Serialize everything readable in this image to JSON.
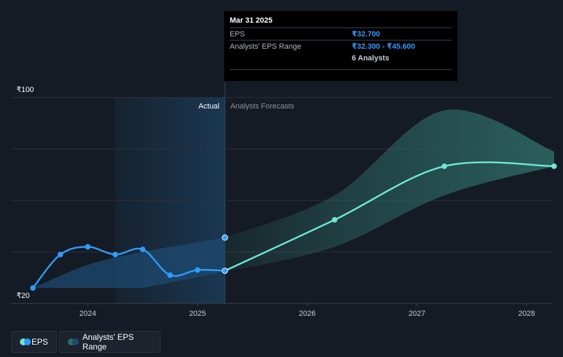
{
  "chart_data": {
    "type": "line",
    "ylim": [
      20,
      100
    ],
    "y_tick_labels": [
      "₹100",
      "₹20"
    ],
    "x_tick_labels": [
      "2024",
      "2025",
      "2026",
      "2027",
      "2028"
    ],
    "x_ticks": [
      2024,
      2025,
      2026,
      2027,
      2028
    ],
    "xlim": [
      2023.3,
      2028.25
    ],
    "region_labels": {
      "actual": "Actual",
      "forecast": "Analysts Forecasts"
    },
    "forecast_start": 2025.25,
    "series": [
      {
        "name": "EPS",
        "kind": "actual",
        "x": [
          2023.5,
          2023.75,
          2024.0,
          2024.25,
          2024.5,
          2024.75,
          2025.0,
          2025.25
        ],
        "y": [
          26,
          39,
          42,
          39,
          41,
          31,
          33,
          32.7
        ]
      },
      {
        "name": "EPS",
        "kind": "forecast",
        "x": [
          2025.25,
          2026.25,
          2027.25,
          2028.25
        ],
        "y": [
          32.7,
          52.5,
          73.3,
          73.3
        ]
      },
      {
        "name": "Analysts' EPS Range",
        "kind": "range",
        "x": [
          2025.25,
          2026.25,
          2027.25,
          2028.25
        ],
        "low": [
          32.3,
          42,
          62,
          73.3
        ],
        "high": [
          45.6,
          62,
          95,
          79
        ]
      }
    ],
    "colors": {
      "eps_actual": "#2d9cff",
      "eps_forecast": "#6ee6d5",
      "range_fill": "#2e6b66",
      "actual_fill": "#1e4a70",
      "grid": "#2b323c"
    }
  },
  "tooltip": {
    "date": "Mar 31 2025",
    "eps_label": "EPS",
    "eps_value": "₹32.700",
    "range_label": "Analysts' EPS Range",
    "range_value": "₹32.300 - ₹45.600",
    "analysts": "6 Analysts"
  },
  "legend": {
    "eps": "EPS",
    "range": "Analysts' EPS Range"
  }
}
